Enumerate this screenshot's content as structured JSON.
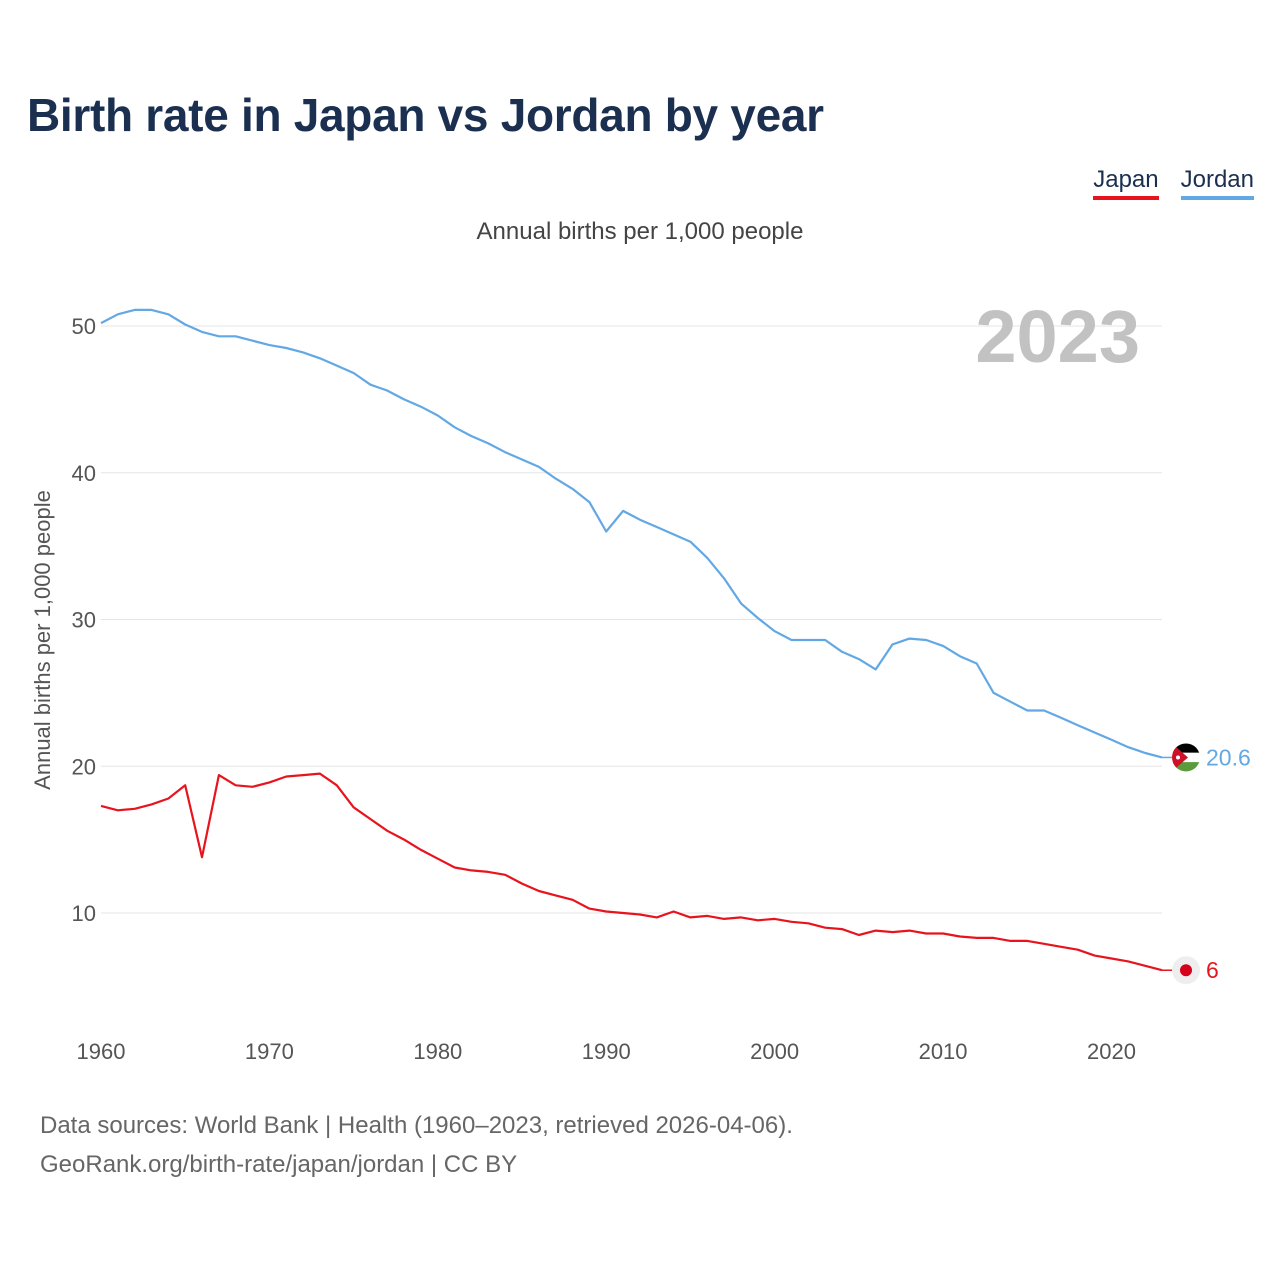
{
  "title": "Birth rate in Japan vs Jordan by year",
  "legend": {
    "japan_label": "Japan",
    "jordan_label": "Jordan"
  },
  "subtitle": "Annual births per 1,000 people",
  "source": {
    "line1": "Data sources: World Bank | Health (1960–2023, retrieved 2026-04-06).",
    "line2": "GeoRank.org/birth-rate/japan/jordan | CC BY"
  },
  "colors": {
    "japan": "#e8141d",
    "jordan": "#62a8e5",
    "grid": "#e6e6e6",
    "axis_text": "#555555",
    "year_watermark": "#c2c2c2"
  },
  "chart_data": {
    "type": "line",
    "title": "Birth rate in Japan vs Jordan by year",
    "ylabel": "Annual births per 1,000 people",
    "xlabel": "",
    "year_label": "2023",
    "xlim": [
      1960,
      2023
    ],
    "ylim": [
      2,
      52
    ],
    "xticks": [
      1960,
      1970,
      1980,
      1990,
      2000,
      2010,
      2020
    ],
    "yticks": [
      10,
      20,
      30,
      40,
      50
    ],
    "x": [
      1960,
      1961,
      1962,
      1963,
      1964,
      1965,
      1966,
      1967,
      1968,
      1969,
      1970,
      1971,
      1972,
      1973,
      1974,
      1975,
      1976,
      1977,
      1978,
      1979,
      1980,
      1981,
      1982,
      1983,
      1984,
      1985,
      1986,
      1987,
      1988,
      1989,
      1990,
      1991,
      1992,
      1993,
      1994,
      1995,
      1996,
      1997,
      1998,
      1999,
      2000,
      2001,
      2002,
      2003,
      2004,
      2005,
      2006,
      2007,
      2008,
      2009,
      2010,
      2011,
      2012,
      2013,
      2014,
      2015,
      2016,
      2017,
      2018,
      2019,
      2020,
      2021,
      2022,
      2023
    ],
    "series": [
      {
        "name": "Japan",
        "color": "#e8141d",
        "end_label": "6",
        "values": [
          17.3,
          17.0,
          17.1,
          17.4,
          17.8,
          18.7,
          13.8,
          19.4,
          18.7,
          18.6,
          18.9,
          19.3,
          19.4,
          19.5,
          18.7,
          17.2,
          16.4,
          15.6,
          15.0,
          14.3,
          13.7,
          13.1,
          12.9,
          12.8,
          12.6,
          12.0,
          11.5,
          11.2,
          10.9,
          10.3,
          10.1,
          10.0,
          9.9,
          9.7,
          10.1,
          9.7,
          9.8,
          9.6,
          9.7,
          9.5,
          9.6,
          9.4,
          9.3,
          9.0,
          8.9,
          8.5,
          8.8,
          8.7,
          8.8,
          8.6,
          8.6,
          8.4,
          8.3,
          8.3,
          8.1,
          8.1,
          7.9,
          7.7,
          7.5,
          7.1,
          6.9,
          6.7,
          6.4,
          6.1
        ]
      },
      {
        "name": "Jordan",
        "color": "#62a8e5",
        "end_label": "20.6",
        "values": [
          50.2,
          50.8,
          51.1,
          51.1,
          50.8,
          50.1,
          49.6,
          49.3,
          49.3,
          49.0,
          48.7,
          48.5,
          48.2,
          47.8,
          47.3,
          46.8,
          46.0,
          45.6,
          45.0,
          44.5,
          43.9,
          43.1,
          42.5,
          42.0,
          41.4,
          40.9,
          40.4,
          39.6,
          38.9,
          38.0,
          36.0,
          37.4,
          36.8,
          36.3,
          35.8,
          35.3,
          34.2,
          32.8,
          31.1,
          30.1,
          29.2,
          28.6,
          28.6,
          28.6,
          27.8,
          27.3,
          26.6,
          28.3,
          28.7,
          28.6,
          28.2,
          27.5,
          27.0,
          25.0,
          24.4,
          23.8,
          23.8,
          23.3,
          22.8,
          22.3,
          21.8,
          21.3,
          20.9,
          20.6
        ]
      }
    ]
  }
}
